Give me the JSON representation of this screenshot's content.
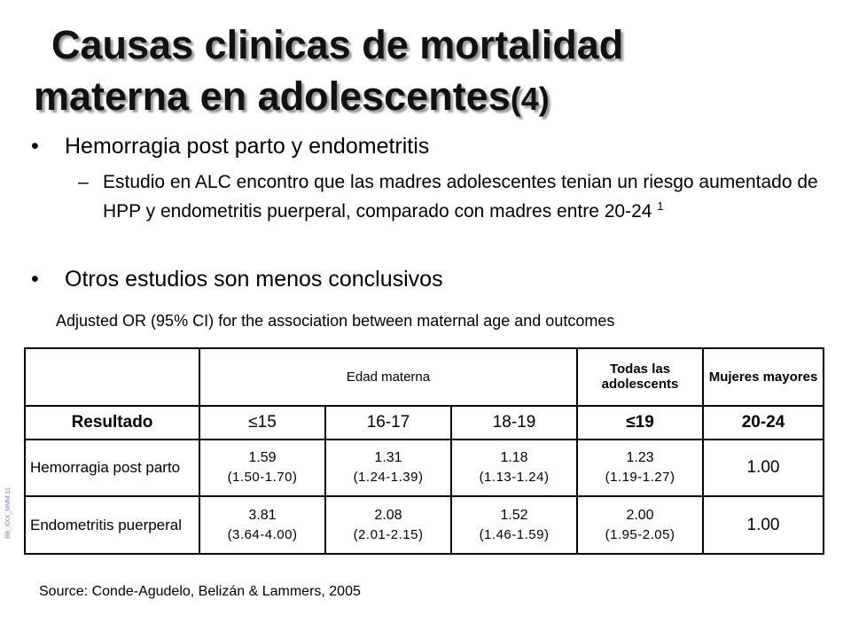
{
  "title": {
    "line1": "Causas clinicas de mortalidad",
    "line2": "materna en adolescentes",
    "line2_suffix": "(4)"
  },
  "bullets": [
    {
      "marker": "•",
      "text": "Hemorragia post parto y endometritis",
      "sub": {
        "marker": "–",
        "text": "Estudio en ALC encontro que las madres adolescentes tenian un riesgo aumentado de HPP y endometritis puerperal, comparado con madres entre 20-24",
        "ref": "1"
      }
    },
    {
      "marker": "•",
      "text": "Otros estudios son menos conclusivos"
    }
  ],
  "table_caption": "Adjusted OR (95% CI) for the association between maternal age and outcomes",
  "table": {
    "header": {
      "blank": "",
      "edad": "Edad materna",
      "todas": "Todas las adolescents",
      "mujeres": "Mujeres mayores"
    },
    "columns": [
      "Resultado",
      "≤15",
      "16-17",
      "18-19",
      "≤19",
      "20-24"
    ],
    "rows": [
      {
        "label": "Hemorragia post parto",
        "cells": [
          {
            "v": "1.59",
            "ci": "(1.50-1.70)"
          },
          {
            "v": "1.31",
            "ci": "(1.24-1.39)"
          },
          {
            "v": "1.18",
            "ci": "(1.13-1.24)"
          },
          {
            "v": "1.23",
            "ci": "(1.19-1.27)"
          }
        ],
        "ref": "1.00"
      },
      {
        "label": "Endometritis puerperal",
        "cells": [
          {
            "v": "3.81",
            "ci": "(3.64-4.00)"
          },
          {
            "v": "2.08",
            "ci": "(2.01-2.15)"
          },
          {
            "v": "1.52",
            "ci": "(1.46-1.59)"
          },
          {
            "v": "2.00",
            "ci": "(1.95-2.05)"
          }
        ],
        "ref": "1.00"
      }
    ]
  },
  "source": "Source: Conde-Agudelo, Belizán & Lammers, 2005",
  "side_code": "BB_XXX_MMM.11"
}
